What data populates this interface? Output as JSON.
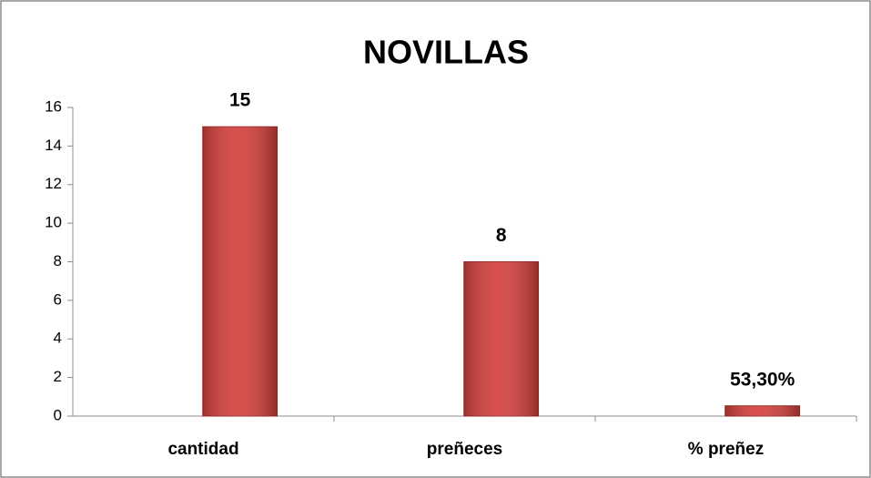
{
  "chart_data": {
    "type": "bar",
    "title": "NOVILLAS",
    "categories": [
      "cantidad",
      "preñeces",
      "% preñez"
    ],
    "values": [
      15,
      8,
      0.533
    ],
    "value_labels": [
      "15",
      "8",
      "53,30%"
    ],
    "color": "#d4403b",
    "ylim": [
      0,
      16
    ],
    "yticks": [
      0,
      2,
      4,
      6,
      8,
      10,
      12,
      14,
      16
    ],
    "grid": false
  }
}
